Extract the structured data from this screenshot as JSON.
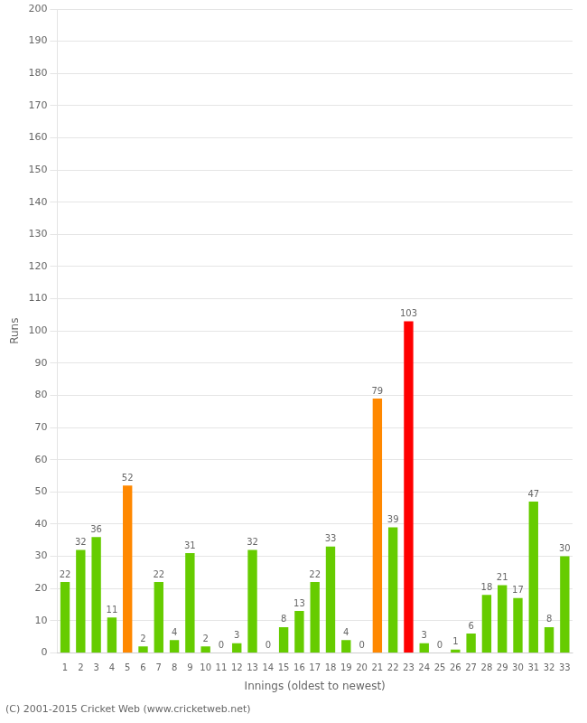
{
  "chart_data": {
    "type": "bar",
    "categories": [
      "1",
      "2",
      "3",
      "4",
      "5",
      "6",
      "7",
      "8",
      "9",
      "10",
      "11",
      "12",
      "13",
      "14",
      "15",
      "16",
      "17",
      "18",
      "19",
      "20",
      "21",
      "22",
      "23",
      "24",
      "25",
      "26",
      "27",
      "28",
      "29",
      "30",
      "31",
      "32",
      "33"
    ],
    "values": [
      22,
      32,
      36,
      11,
      52,
      2,
      22,
      4,
      31,
      2,
      0,
      3,
      32,
      0,
      8,
      13,
      22,
      33,
      4,
      0,
      79,
      39,
      103,
      3,
      0,
      1,
      6,
      18,
      21,
      17,
      47,
      8,
      30
    ],
    "colors": [
      "#66cc00",
      "#66cc00",
      "#66cc00",
      "#66cc00",
      "#ff8800",
      "#66cc00",
      "#66cc00",
      "#66cc00",
      "#66cc00",
      "#66cc00",
      "#66cc00",
      "#66cc00",
      "#66cc00",
      "#66cc00",
      "#66cc00",
      "#66cc00",
      "#66cc00",
      "#66cc00",
      "#66cc00",
      "#66cc00",
      "#ff8800",
      "#66cc00",
      "#ff0000",
      "#66cc00",
      "#66cc00",
      "#66cc00",
      "#66cc00",
      "#66cc00",
      "#66cc00",
      "#66cc00",
      "#66cc00",
      "#66cc00",
      "#66cc00"
    ],
    "ylabel": "Runs",
    "xlabel": "Innings (oldest to newest)",
    "ylim": [
      0,
      200
    ],
    "yticks": [
      0,
      10,
      20,
      30,
      40,
      50,
      60,
      70,
      80,
      90,
      100,
      110,
      120,
      130,
      140,
      150,
      160,
      170,
      180,
      190,
      200
    ],
    "grid": true,
    "data_labels": true,
    "footer": "(C) 2001-2015 Cricket Web (www.cricketweb.net)"
  }
}
